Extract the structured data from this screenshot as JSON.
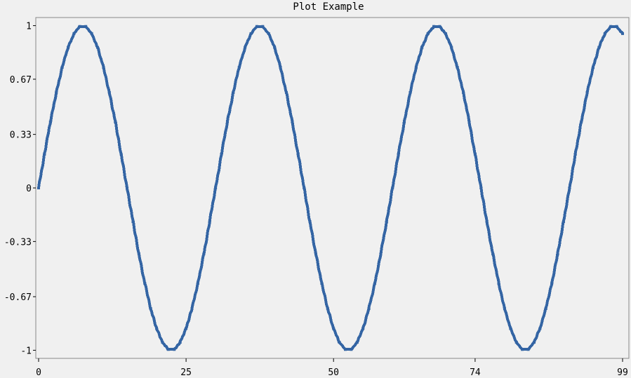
{
  "chart_data": {
    "type": "line",
    "title": "Plot Example",
    "xlabel": "",
    "ylabel": "",
    "x_range": [
      0,
      99
    ],
    "ylim": [
      -1.05,
      1.05
    ],
    "x_ticks": [
      {
        "value": 0,
        "label": "0"
      },
      {
        "value": 25,
        "label": "25"
      },
      {
        "value": 50,
        "label": "50"
      },
      {
        "value": 74,
        "label": "74"
      },
      {
        "value": 99,
        "label": "99"
      }
    ],
    "y_ticks": [
      {
        "value": 1,
        "label": "1"
      },
      {
        "value": 0.67,
        "label": "0.67"
      },
      {
        "value": 0.33,
        "label": "0.33"
      },
      {
        "value": 0,
        "label": "0"
      },
      {
        "value": -0.33,
        "label": "-0.33"
      },
      {
        "value": -0.67,
        "label": "-0.67"
      },
      {
        "value": -1,
        "label": "-1"
      }
    ],
    "grid": false,
    "legend": "none",
    "series": [
      {
        "color": "#3465a4",
        "x": [
          0,
          1,
          2,
          3,
          4,
          5,
          6,
          7,
          8,
          9,
          10,
          11,
          12,
          13,
          14,
          15,
          16,
          17,
          18,
          19,
          20,
          21,
          22,
          23,
          24,
          25,
          26,
          27,
          28,
          29,
          30,
          31,
          32,
          33,
          34,
          35,
          36,
          37,
          38,
          39,
          40,
          41,
          42,
          43,
          44,
          45,
          46,
          47,
          48,
          49,
          50,
          51,
          52,
          53,
          54,
          55,
          56,
          57,
          58,
          59,
          60,
          61,
          62,
          63,
          64,
          65,
          66,
          67,
          68,
          69,
          70,
          71,
          72,
          73,
          74,
          75,
          76,
          77,
          78,
          79,
          80,
          81,
          82,
          83,
          84,
          85,
          86,
          87,
          88,
          89,
          90,
          91,
          92,
          93,
          94,
          95,
          96,
          97,
          98,
          99
        ],
        "values": [
          0.0,
          0.208,
          0.407,
          0.588,
          0.743,
          0.866,
          0.951,
          0.995,
          0.995,
          0.951,
          0.866,
          0.743,
          0.588,
          0.407,
          0.208,
          0.0,
          -0.208,
          -0.407,
          -0.588,
          -0.743,
          -0.866,
          -0.951,
          -0.995,
          -0.995,
          -0.951,
          -0.866,
          -0.743,
          -0.588,
          -0.407,
          -0.208,
          0.0,
          0.208,
          0.407,
          0.588,
          0.743,
          0.866,
          0.951,
          0.995,
          0.995,
          0.951,
          0.866,
          0.743,
          0.588,
          0.407,
          0.208,
          0.0,
          -0.208,
          -0.407,
          -0.588,
          -0.743,
          -0.866,
          -0.951,
          -0.995,
          -0.995,
          -0.951,
          -0.866,
          -0.743,
          -0.588,
          -0.407,
          -0.208,
          0.0,
          0.208,
          0.407,
          0.588,
          0.743,
          0.866,
          0.951,
          0.995,
          0.995,
          0.951,
          0.866,
          0.743,
          0.588,
          0.407,
          0.208,
          0.0,
          -0.208,
          -0.407,
          -0.588,
          -0.743,
          -0.866,
          -0.951,
          -0.995,
          -0.995,
          -0.951,
          -0.866,
          -0.743,
          -0.588,
          -0.407,
          -0.208,
          0.0,
          0.208,
          0.407,
          0.588,
          0.743,
          0.866,
          0.951,
          0.995,
          0.995,
          0.951
        ]
      }
    ]
  }
}
